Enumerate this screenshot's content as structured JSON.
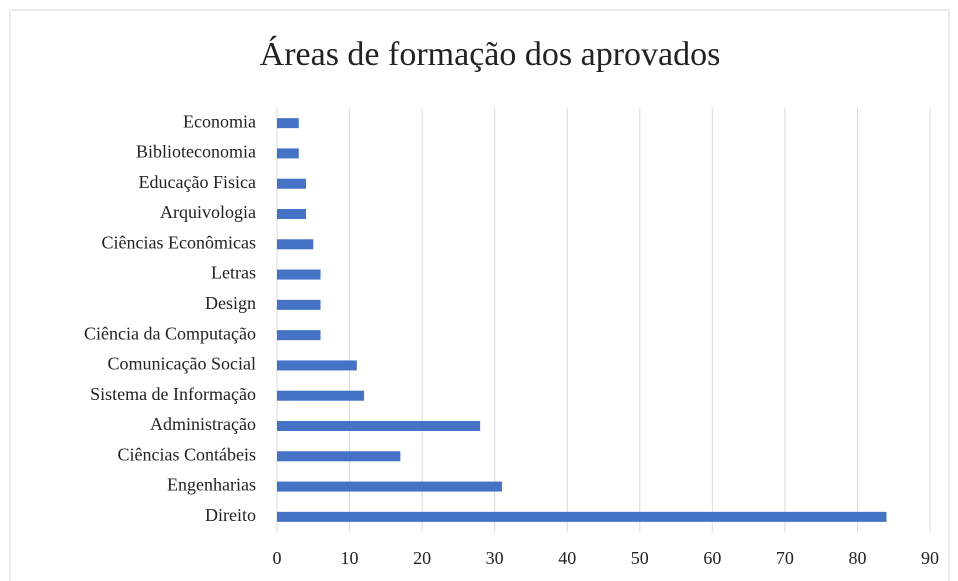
{
  "chart_data": {
    "type": "bar",
    "orientation": "horizontal",
    "title": "Áreas de formação  dos aprovados",
    "categories": [
      "Economia",
      "Biblioteconomia",
      "Educação Fisica",
      "Arquivologia",
      "Ciências Econômicas",
      "Letras",
      "Design",
      "Ciência da Computação",
      "Comunicação Social",
      "Sistema de Informação",
      "Administração",
      "Ciências Contábeis",
      "Engenharias",
      "Direito"
    ],
    "values": [
      3,
      3,
      4,
      4,
      5,
      6,
      6,
      6,
      11,
      12,
      28,
      17,
      31,
      84
    ],
    "color": "#4472c4",
    "xlim": [
      0,
      90
    ],
    "xticks": [
      0,
      10,
      20,
      30,
      40,
      50,
      60,
      70,
      80,
      90
    ],
    "grid": true
  }
}
